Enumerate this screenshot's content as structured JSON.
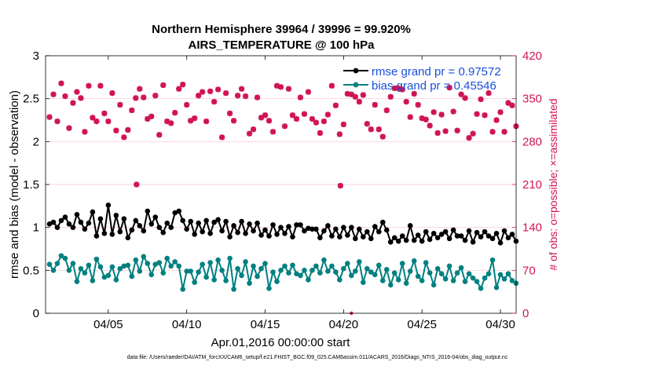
{
  "chart_data": {
    "type": "line",
    "title": "Northern Hemisphere 39964 / 39996 = 99.920%",
    "subtitle": "AIRS_TEMPERATURE @ 100 hPa",
    "xlabel": "Apr.01,2016 00:00:00 start",
    "ylabel": "rmse and bias (model - observation)",
    "ylabel_right": "# of obs: o=possible; ×=assimilated",
    "ylim": [
      0,
      3
    ],
    "ylim_right": [
      0,
      420
    ],
    "yticks": [
      "0",
      "0.5",
      "1",
      "1.5",
      "2",
      "2.5",
      "3"
    ],
    "yticks_right": [
      "0",
      "70",
      "140",
      "210",
      "280",
      "350",
      "420"
    ],
    "xlim_days": [
      1,
      31
    ],
    "xticks": [
      {
        "label": "04/05",
        "day": 5
      },
      {
        "label": "04/10",
        "day": 10
      },
      {
        "label": "04/15",
        "day": 15
      },
      {
        "label": "04/20",
        "day": 20
      },
      {
        "label": "04/25",
        "day": 25
      },
      {
        "label": "04/30",
        "day": 30
      }
    ],
    "footnote": "data file: /Users/raeder/DAI/ATM_forcXX/CAM6_setup/f.e21.FHIST_BGC.f09_025.CAM6assim.011/ACARS_2016/Diags_NTrS_2016-04/obs_diag_output.nc",
    "legend": [
      {
        "label": "rmse grand pr = 0.97572",
        "color": "#000000"
      },
      {
        "label": "bias grand pr = 0.45546",
        "color": "#008080"
      }
    ],
    "colors": {
      "rmse": "#000000",
      "bias": "#008080",
      "obs": "#d01455"
    },
    "x_start_day": 1.25,
    "x_step_days": 0.25,
    "series": [
      {
        "name": "rmse",
        "values": [
          1.04,
          1.06,
          1.0,
          1.08,
          1.12,
          1.04,
          1.0,
          1.15,
          1.06,
          0.98,
          1.05,
          1.18,
          0.9,
          1.1,
          0.93,
          1.26,
          0.92,
          1.14,
          0.95,
          1.1,
          0.88,
          0.97,
          1.08,
          1.02,
          0.96,
          1.19,
          1.04,
          1.12,
          1.0,
          0.94,
          1.05,
          1.0,
          1.17,
          1.19,
          1.08,
          0.98,
          1.07,
          0.92,
          1.05,
          0.95,
          1.08,
          0.93,
          1.06,
          1.09,
          0.96,
          1.07,
          0.89,
          1.02,
          0.94,
          1.07,
          0.93,
          1.04,
          0.96,
          1.05,
          0.91,
          0.97,
          0.9,
          1.03,
          0.92,
          1.0,
          0.93,
          1.01,
          0.89,
          1.03,
          1.03,
          0.96,
          0.99,
          0.98,
          0.98,
          0.88,
          0.96,
          1.02,
          0.9,
          0.98,
          0.89,
          1.0,
          0.91,
          1.0,
          0.87,
          0.98,
          0.89,
          0.95,
          0.87,
          1.01,
          0.95,
          1.06,
          0.97,
          0.83,
          0.88,
          0.84,
          0.9,
          0.85,
          1.02,
          0.85,
          0.91,
          0.84,
          0.95,
          0.86,
          0.93,
          0.88,
          0.92,
          0.95,
          0.87,
          0.97,
          0.9,
          0.9,
          0.85,
          0.96,
          0.83,
          0.94,
          0.89,
          0.95,
          0.9,
          0.87,
          0.93,
          0.82,
          0.96,
          0.88,
          0.92,
          0.84
        ],
        "color": "#000000"
      },
      {
        "name": "bias",
        "values": [
          0.57,
          0.5,
          0.58,
          0.67,
          0.64,
          0.5,
          0.58,
          0.37,
          0.52,
          0.47,
          0.56,
          0.38,
          0.63,
          0.54,
          0.42,
          0.44,
          0.54,
          0.39,
          0.52,
          0.55,
          0.56,
          0.43,
          0.62,
          0.49,
          0.66,
          0.58,
          0.45,
          0.57,
          0.59,
          0.47,
          0.64,
          0.55,
          0.6,
          0.55,
          0.28,
          0.49,
          0.49,
          0.36,
          0.48,
          0.57,
          0.42,
          0.59,
          0.39,
          0.62,
          0.5,
          0.38,
          0.64,
          0.28,
          0.52,
          0.44,
          0.6,
          0.35,
          0.55,
          0.43,
          0.52,
          0.58,
          0.29,
          0.48,
          0.37,
          0.5,
          0.55,
          0.47,
          0.56,
          0.46,
          0.44,
          0.5,
          0.39,
          0.5,
          0.55,
          0.47,
          0.62,
          0.49,
          0.55,
          0.48,
          0.39,
          0.52,
          0.58,
          0.44,
          0.49,
          0.6,
          0.36,
          0.52,
          0.48,
          0.45,
          0.56,
          0.38,
          0.51,
          0.33,
          0.47,
          0.39,
          0.58,
          0.35,
          0.49,
          0.61,
          0.43,
          0.38,
          0.59,
          0.47,
          0.33,
          0.52,
          0.46,
          0.4,
          0.55,
          0.38,
          0.47,
          0.53,
          0.37,
          0.46,
          0.41,
          0.37,
          0.29,
          0.41,
          0.46,
          0.62,
          0.3,
          0.45,
          0.4,
          0.46,
          0.38,
          0.35
        ],
        "color": "#008080"
      },
      {
        "name": "observations",
        "values": [
          320,
          357,
          313,
          375,
          354,
          302,
          343,
          361,
          351,
          296,
          371,
          319,
          313,
          371,
          326,
          313,
          359,
          298,
          340,
          287,
          299,
          331,
          351,
          366,
          352,
          317,
          321,
          355,
          291,
          372,
          313,
          310,
          327,
          366,
          373,
          340,
          314,
          318,
          355,
          361,
          313,
          362,
          345,
          365,
          287,
          359,
          326,
          314,
          355,
          366,
          354,
          293,
          300,
          352,
          319,
          323,
          314,
          296,
          371,
          369,
          305,
          366,
          323,
          317,
          352,
          325,
          361,
          317,
          311,
          294,
          313,
          324,
          371,
          339,
          292,
          308,
          358,
          357,
          353,
          345,
          356,
          309,
          300,
          340,
          300,
          288,
          331,
          353,
          367,
          367,
          365,
          345,
          320,
          358,
          340,
          318,
          316,
          306,
          328,
          294,
          324,
          297,
          368,
          329,
          298,
          357,
          351,
          286,
          293,
          325,
          349,
          323,
          359,
          296,
          315,
          328,
          296,
          343,
          339,
          305
        ],
        "color": "#d01455"
      }
    ],
    "outliers": [
      {
        "day": 6.8,
        "value": 210
      },
      {
        "day": 19.8,
        "value": 208
      }
    ]
  }
}
